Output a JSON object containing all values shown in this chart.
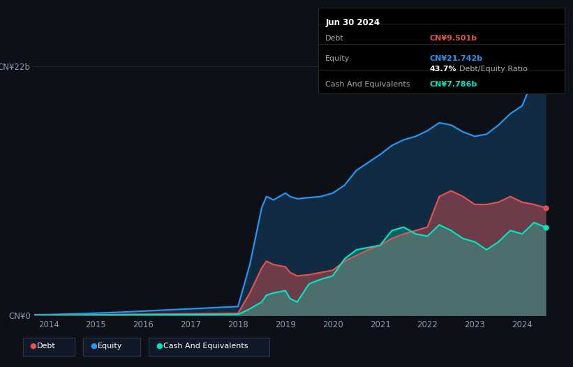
{
  "bg_color": "#0d1117",
  "plot_bg_color": "#0d1117",
  "grid_color": "#1e2938",
  "ylabel_top": "CN¥22b",
  "ylabel_bottom": "CN¥0",
  "x_ticks": [
    2014,
    2015,
    2016,
    2017,
    2018,
    2019,
    2020,
    2021,
    2022,
    2023,
    2024
  ],
  "tooltip_date": "Jun 30 2024",
  "tooltip_debt_label": "Debt",
  "tooltip_debt_value": "CN¥9.501b",
  "tooltip_equity_label": "Equity",
  "tooltip_equity_value": "CN¥21.742b",
  "tooltip_ratio_bold": "43.7%",
  "tooltip_ratio_text": " Debt/Equity Ratio",
  "tooltip_cash_label": "Cash And Equivalents",
  "tooltip_cash_value": "CN¥7.786b",
  "debt_color": "#e05252",
  "equity_color": "#2196f3",
  "cash_color": "#00e5c0",
  "legend_labels": [
    "Debt",
    "Equity",
    "Cash And Equivalents"
  ],
  "ylim": [
    0,
    22
  ],
  "xlim_start": 2013.7,
  "xlim_end": 2024.65,
  "years": [
    2013.7,
    2014.0,
    2014.25,
    2014.5,
    2014.75,
    2015.0,
    2015.25,
    2015.5,
    2015.75,
    2016.0,
    2016.25,
    2016.5,
    2016.75,
    2017.0,
    2017.25,
    2017.5,
    2017.75,
    2018.0,
    2018.25,
    2018.5,
    2018.6,
    2018.75,
    2019.0,
    2019.1,
    2019.25,
    2019.5,
    2019.75,
    2020.0,
    2020.25,
    2020.5,
    2020.75,
    2021.0,
    2021.25,
    2021.5,
    2021.75,
    2022.0,
    2022.25,
    2022.5,
    2022.75,
    2023.0,
    2023.25,
    2023.5,
    2023.75,
    2024.0,
    2024.25,
    2024.5
  ],
  "equity": [
    0.08,
    0.1,
    0.12,
    0.15,
    0.18,
    0.22,
    0.26,
    0.3,
    0.35,
    0.4,
    0.45,
    0.5,
    0.55,
    0.6,
    0.65,
    0.7,
    0.75,
    0.8,
    4.5,
    9.5,
    10.5,
    10.2,
    10.8,
    10.5,
    10.3,
    10.4,
    10.5,
    10.8,
    11.5,
    12.8,
    13.5,
    14.2,
    15.0,
    15.5,
    15.8,
    16.3,
    17.0,
    16.8,
    16.2,
    15.8,
    16.0,
    16.8,
    17.8,
    18.5,
    21.0,
    21.742
  ],
  "debt": [
    0.03,
    0.04,
    0.05,
    0.06,
    0.07,
    0.08,
    0.09,
    0.1,
    0.11,
    0.12,
    0.13,
    0.14,
    0.15,
    0.16,
    0.17,
    0.18,
    0.19,
    0.2,
    2.0,
    4.2,
    4.8,
    4.5,
    4.3,
    3.8,
    3.5,
    3.6,
    3.8,
    4.0,
    4.8,
    5.3,
    5.8,
    6.2,
    6.8,
    7.2,
    7.5,
    7.8,
    10.5,
    11.0,
    10.5,
    9.8,
    9.8,
    10.0,
    10.5,
    10.0,
    9.8,
    9.501
  ],
  "cash": [
    0.02,
    0.02,
    0.03,
    0.03,
    0.04,
    0.04,
    0.05,
    0.05,
    0.06,
    0.06,
    0.07,
    0.07,
    0.08,
    0.08,
    0.09,
    0.09,
    0.1,
    0.1,
    0.6,
    1.2,
    1.8,
    2.0,
    2.2,
    1.5,
    1.2,
    2.8,
    3.2,
    3.5,
    5.0,
    5.8,
    6.0,
    6.2,
    7.5,
    7.8,
    7.2,
    7.0,
    8.0,
    7.5,
    6.8,
    6.5,
    5.8,
    6.5,
    7.5,
    7.2,
    8.2,
    7.786
  ]
}
